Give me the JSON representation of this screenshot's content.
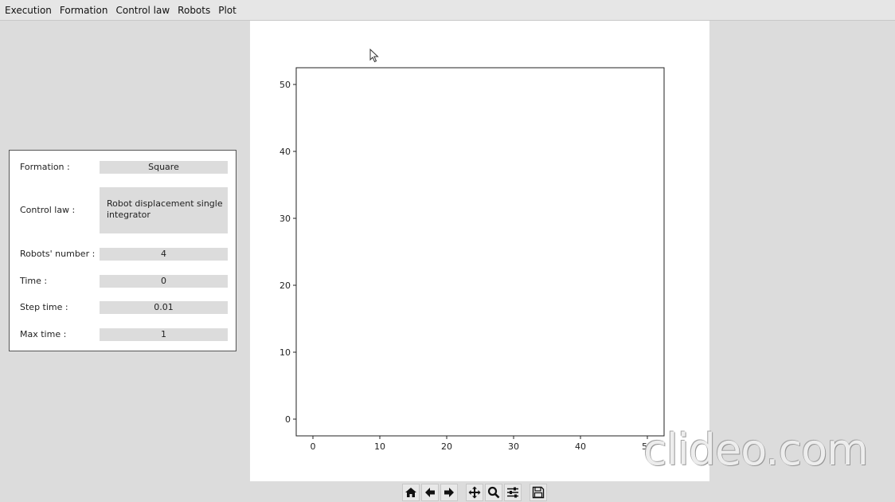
{
  "menubar": {
    "items": [
      "Execution",
      "Formation",
      "Control law",
      "Robots",
      "Plot"
    ]
  },
  "panel": {
    "formation": {
      "label": "Formation :",
      "value": "Square"
    },
    "control_law": {
      "label": "Control law :",
      "value": "Robot displacement single integrator"
    },
    "robots_number": {
      "label": "Robots' number :",
      "value": "4"
    },
    "time": {
      "label": "Time :",
      "value": "0"
    },
    "step_time": {
      "label": "Step time :",
      "value": "0.01"
    },
    "max_time": {
      "label": "Max time :",
      "value": "1"
    }
  },
  "toolbar": {
    "icons": [
      "home-icon",
      "back-arrow-icon",
      "forward-arrow-icon",
      "pan-icon",
      "zoom-icon",
      "configure-subplots-icon",
      "save-icon"
    ]
  },
  "watermark": {
    "text": "clideo.com"
  },
  "chart_data": {
    "type": "scatter",
    "title": "",
    "xlabel": "",
    "ylabel": "",
    "xlim": [
      -2.5,
      52.5
    ],
    "ylim": [
      -2.5,
      52.5
    ],
    "xticks": [
      0,
      10,
      20,
      30,
      40,
      50
    ],
    "yticks": [
      0,
      10,
      20,
      30,
      40,
      50
    ],
    "series": [],
    "grid": false
  }
}
